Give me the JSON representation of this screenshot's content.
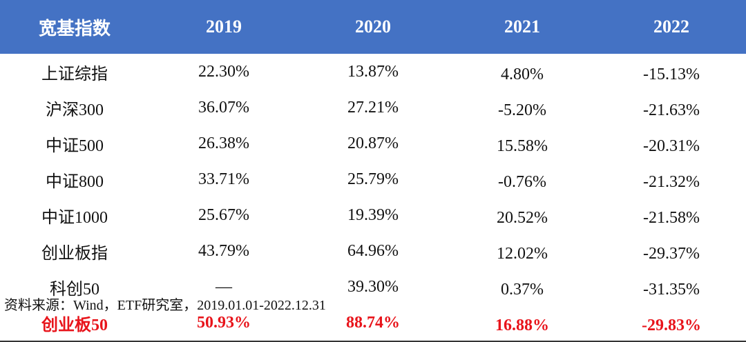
{
  "table": {
    "header": [
      "宽基指数",
      "2019",
      "2020",
      "2021",
      "2022"
    ],
    "rows": [
      [
        "上证综指",
        "22.30%",
        "13.87%",
        "4.80%",
        "-15.13%"
      ],
      [
        "沪深300",
        "36.07%",
        "27.21%",
        "-5.20%",
        "-21.63%"
      ],
      [
        "中证500",
        "26.38%",
        "20.87%",
        "15.58%",
        "-20.31%"
      ],
      [
        "中证800",
        "33.71%",
        "25.79%",
        "-0.76%",
        "-21.32%"
      ],
      [
        "中证1000",
        "25.67%",
        "19.39%",
        "20.52%",
        "-21.58%"
      ],
      [
        "创业板指",
        "43.79%",
        "64.96%",
        "12.02%",
        "-29.37%"
      ],
      [
        "科创50",
        "—",
        "39.30%",
        "0.37%",
        "-31.35%"
      ],
      [
        "创业板50",
        "50.93%",
        "88.74%",
        "16.88%",
        "-29.83%"
      ]
    ]
  },
  "source": "资料来源：Wind，ETF研究室，2019.01.01-2022.12.31"
}
